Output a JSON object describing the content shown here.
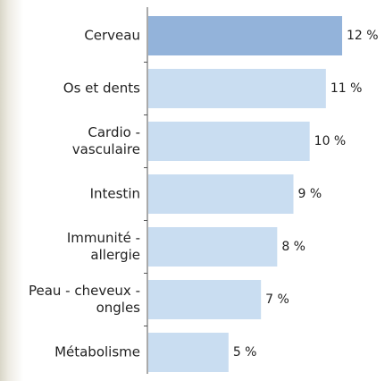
{
  "chart_data": {
    "type": "hbar",
    "categories": [
      "Cerveau",
      "Os et dents",
      "Cardio -\nvasculaire",
      "Intestin",
      "Immunité -\nallergie",
      "Peau - cheveux -\nongles",
      "Métabolisme"
    ],
    "values": [
      12,
      11,
      10,
      9,
      8,
      7,
      5
    ],
    "value_labels": [
      "12 %",
      "11 %",
      "10 %",
      "9 %",
      "8 %",
      "7 %",
      "5 %"
    ],
    "colors": [
      "#93b3da",
      "#c9ddf1",
      "#c9ddf1",
      "#c9ddf1",
      "#c9ddf1",
      "#c9ddf1",
      "#c9ddf1"
    ]
  }
}
